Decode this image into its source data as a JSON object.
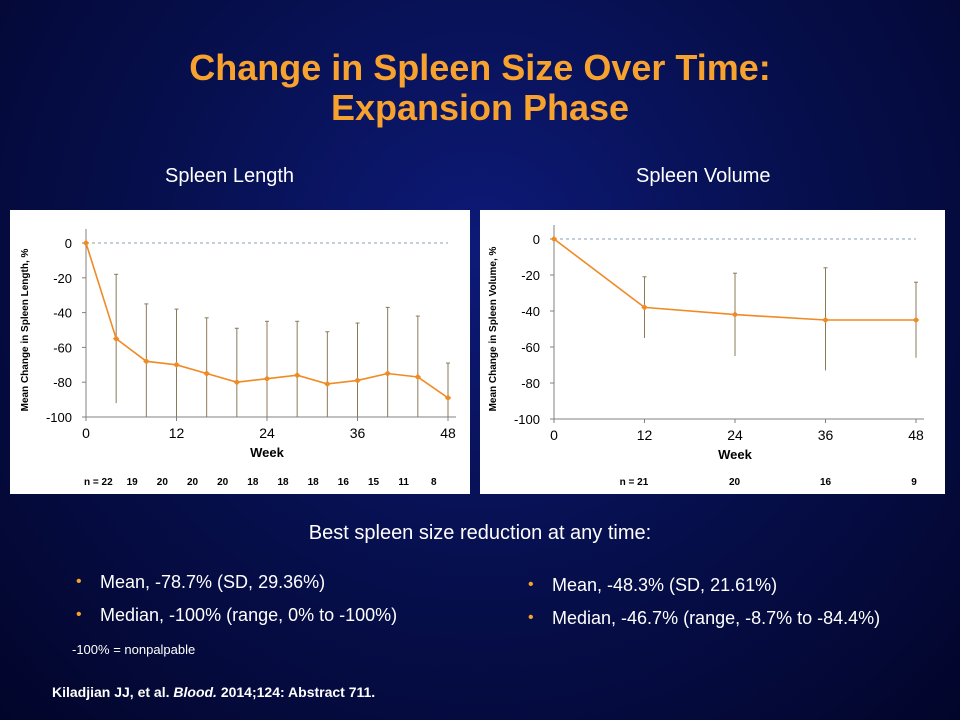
{
  "slide": {
    "title_line1": "Change in Spleen Size Over Time:",
    "title_line2": "Expansion Phase",
    "left_subtitle": "Spleen Length",
    "right_subtitle": "Spleen Volume",
    "summary_heading": "Best spleen size reduction at any time:",
    "left_bullets": [
      "Mean, -78.7% (SD, 29.36%)",
      "Median, -100% (range, 0% to -100%)"
    ],
    "right_bullets": [
      "Mean, -48.3% (SD, 21.61%)",
      "Median, -46.7% (range, -8.7% to -84.4%)"
    ],
    "note": "-100% = nonpalpable",
    "citation_authors": "Kiladjian JJ, et al.",
    "citation_journal": "Blood.",
    "citation_rest": "2014;124: Abstract 711.",
    "colors": {
      "title": "#f7a22e",
      "series": "#f08a24",
      "errorbar": "#8a7a5a",
      "bullet": "#f7a22e"
    }
  },
  "chart_data": [
    {
      "type": "line",
      "xlabel": "Week",
      "ylabel": "Mean Change in Spleen Length, %",
      "xlim": [
        0,
        48
      ],
      "ylim": [
        -100,
        0
      ],
      "xticks": [
        0,
        12,
        24,
        36,
        48
      ],
      "yticks": [
        0,
        -20,
        -40,
        -60,
        -80,
        -100
      ],
      "reference_line": 0,
      "series": [
        {
          "x": [
            0,
            4,
            8,
            12,
            16,
            20,
            24,
            28,
            32,
            36,
            40,
            44,
            48
          ],
          "values": [
            0,
            -55,
            -68,
            -70,
            -75,
            -80,
            -78,
            -76,
            -81,
            -79,
            -75,
            -77,
            -89
          ],
          "error_upper": [
            0,
            -18,
            -35,
            -38,
            -43,
            -49,
            -45,
            -45,
            -51,
            -46,
            -37,
            -42,
            -69
          ],
          "error_lower": [
            0,
            -92,
            -100,
            -100,
            -100,
            -100,
            -100,
            -100,
            -100,
            -100,
            -100,
            -100,
            -100
          ]
        }
      ],
      "n_label": "n = 22",
      "n_values": [
        "19",
        "20",
        "20",
        "20",
        "18",
        "18",
        "18",
        "16",
        "15",
        "11",
        "8"
      ]
    },
    {
      "type": "line",
      "xlabel": "Week",
      "ylabel": "Mean Change in Spleen Volume, %",
      "xlim": [
        0,
        48
      ],
      "ylim": [
        -100,
        0
      ],
      "xticks": [
        0,
        12,
        24,
        36,
        48
      ],
      "yticks": [
        0,
        -20,
        -40,
        -60,
        -80,
        -100
      ],
      "reference_line": 0,
      "series": [
        {
          "x": [
            0,
            12,
            24,
            36,
            48
          ],
          "values": [
            0,
            -38,
            -42,
            -45,
            -45
          ],
          "error_upper": [
            0,
            -21,
            -19,
            -16,
            -24
          ],
          "error_lower": [
            0,
            -55,
            -65,
            -73,
            -66
          ]
        }
      ],
      "n_label": "n = 21",
      "n_values": [
        "20",
        "16",
        "9"
      ]
    }
  ]
}
